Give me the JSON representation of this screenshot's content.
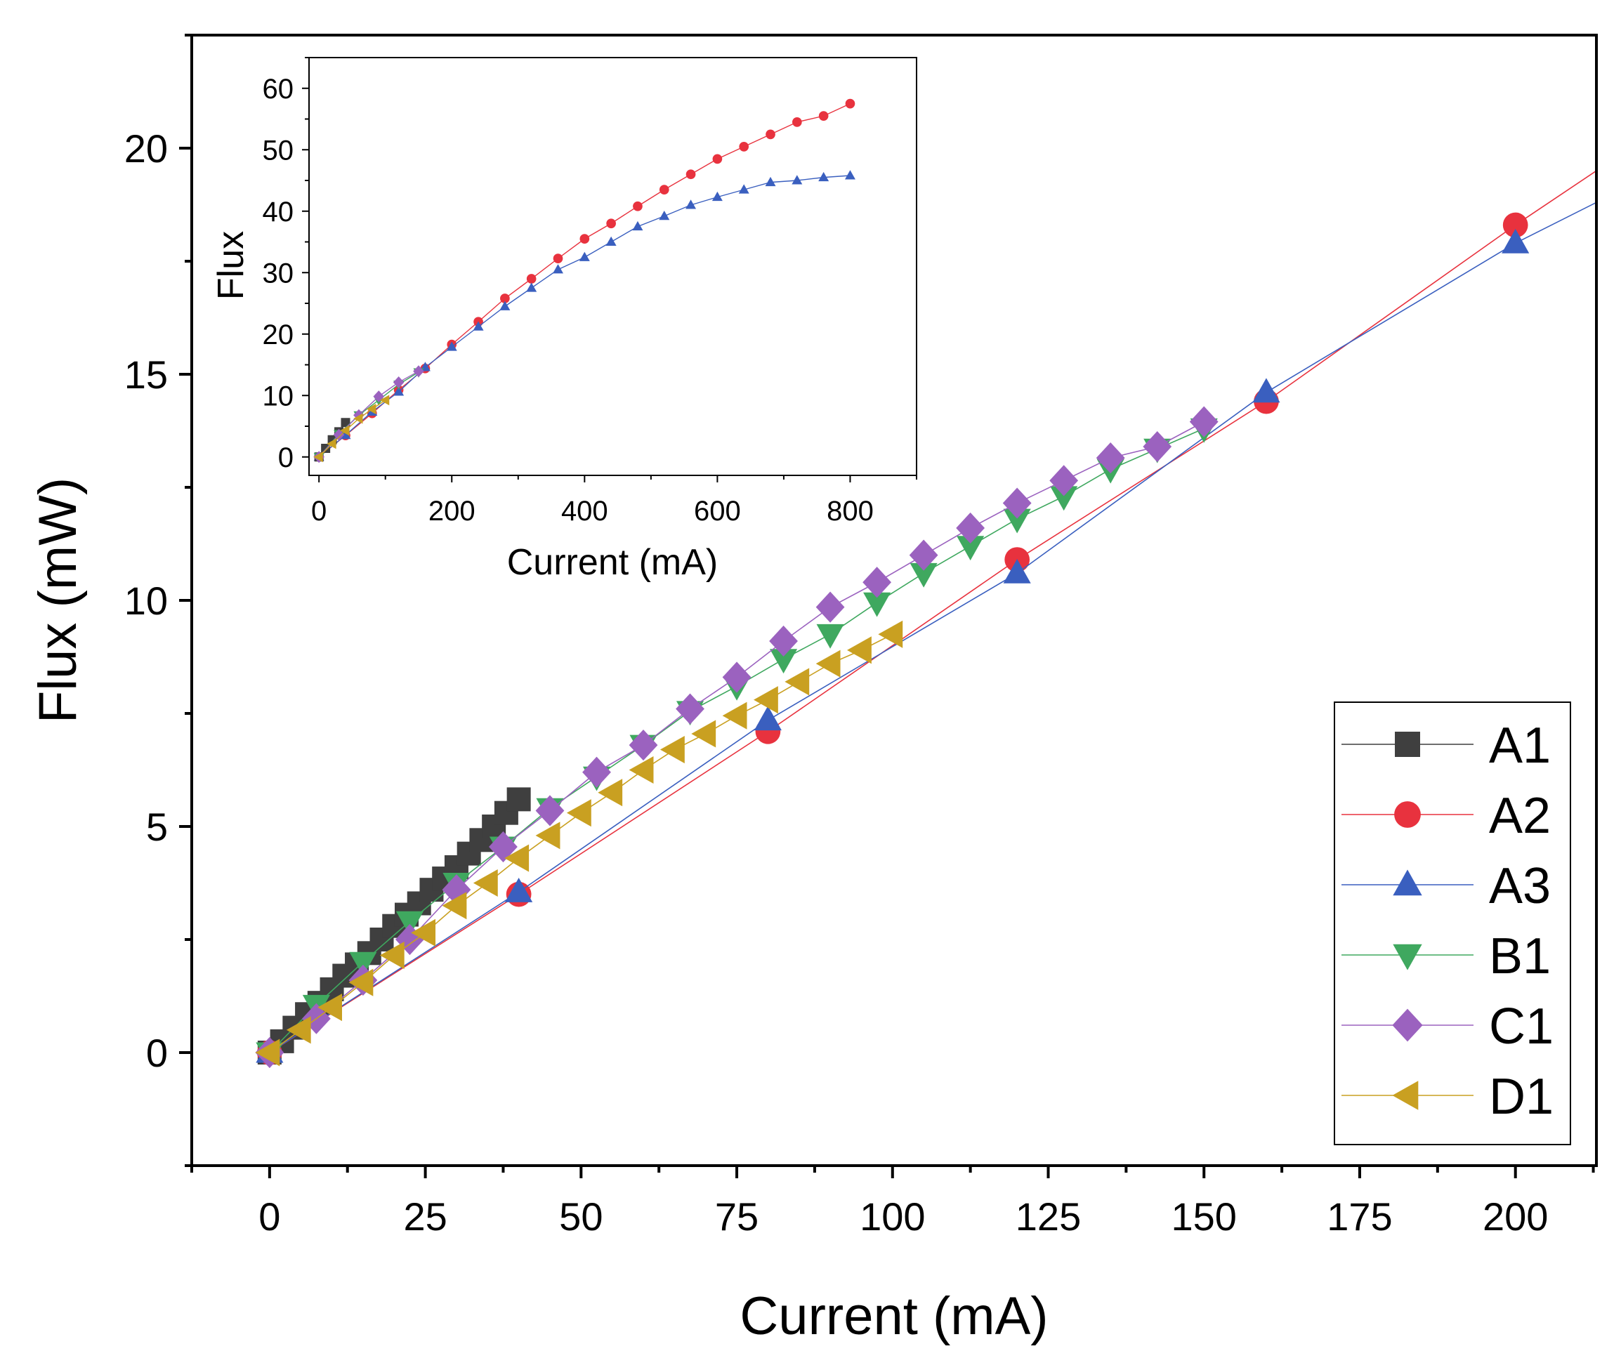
{
  "chart_data": [
    {
      "name": "main",
      "type": "line",
      "xlabel": "Current (mA)",
      "ylabel": "Flux (mW)",
      "xlim": [
        -12.5,
        213
      ],
      "ylim": [
        -2.5,
        22.5
      ],
      "xticks": [
        0,
        25,
        50,
        75,
        100,
        125,
        150,
        175,
        200
      ],
      "yticks": [
        0,
        5,
        10,
        15,
        20
      ],
      "legend_position": "bottom-right",
      "series": [
        {
          "name": "A1",
          "marker": "square",
          "color": "#3f3f3f",
          "x": [
            0,
            2,
            4,
            6,
            8,
            10,
            12,
            14,
            16,
            18,
            20,
            22,
            24,
            26,
            28,
            30,
            32,
            34,
            36,
            38,
            40
          ],
          "y": [
            0,
            0.25,
            0.55,
            0.85,
            1.1,
            1.4,
            1.7,
            1.95,
            2.2,
            2.5,
            2.8,
            3.05,
            3.3,
            3.6,
            3.85,
            4.1,
            4.4,
            4.7,
            5.0,
            5.3,
            5.6
          ]
        },
        {
          "name": "A2",
          "marker": "circle",
          "color": "#e8323e",
          "x": [
            0,
            40,
            80,
            120,
            160,
            200
          ],
          "y": [
            0,
            3.5,
            7.1,
            10.9,
            14.4,
            18.3
          ],
          "extends_to": [
            213,
            19.5
          ]
        },
        {
          "name": "A3",
          "marker": "triangle-up",
          "color": "#3a5fbf",
          "x": [
            0,
            40,
            80,
            120,
            160,
            200
          ],
          "y": [
            0,
            3.55,
            7.35,
            10.6,
            14.6,
            17.9
          ],
          "extends_to": [
            213,
            18.8
          ]
        },
        {
          "name": "B1",
          "marker": "triangle-down",
          "color": "#3fa85f",
          "x": [
            0,
            7.5,
            15,
            22.5,
            30,
            37.5,
            45,
            52.5,
            60,
            67.5,
            75,
            82.5,
            90,
            97.5,
            105,
            112.5,
            120,
            127.5,
            135,
            142.5,
            150
          ],
          "y": [
            0,
            1.05,
            2.0,
            2.9,
            3.75,
            4.55,
            5.4,
            6.1,
            6.8,
            7.55,
            8.1,
            8.7,
            9.25,
            9.95,
            10.6,
            11.2,
            11.8,
            12.3,
            12.9,
            13.35,
            13.8
          ]
        },
        {
          "name": "C1",
          "marker": "diamond",
          "color": "#9b62bf",
          "x": [
            0,
            7.5,
            15,
            22.5,
            30,
            37.5,
            45,
            52.5,
            60,
            67.5,
            75,
            82.5,
            90,
            97.5,
            105,
            112.5,
            120,
            127.5,
            135,
            142.5,
            150
          ],
          "y": [
            0,
            0.75,
            1.6,
            2.5,
            3.6,
            4.55,
            5.35,
            6.2,
            6.8,
            7.6,
            8.3,
            9.1,
            9.85,
            10.4,
            11.0,
            11.6,
            12.15,
            12.65,
            13.15,
            13.4,
            13.95
          ]
        },
        {
          "name": "D1",
          "marker": "triangle-left",
          "color": "#c9a021",
          "x": [
            0,
            5,
            10,
            15,
            20,
            25,
            30,
            35,
            40,
            45,
            50,
            55,
            60,
            65,
            70,
            75,
            80,
            85,
            90,
            95,
            100
          ],
          "y": [
            0,
            0.5,
            1.0,
            1.55,
            2.15,
            2.65,
            3.25,
            3.75,
            4.3,
            4.8,
            5.3,
            5.75,
            6.25,
            6.7,
            7.05,
            7.45,
            7.8,
            8.2,
            8.6,
            8.9,
            9.25
          ]
        }
      ]
    },
    {
      "name": "inset",
      "type": "line",
      "xlabel": "Current (mA)",
      "ylabel": "Flux",
      "xlim": [
        -15,
        900
      ],
      "ylim": [
        -3,
        65
      ],
      "xticks": [
        0,
        200,
        400,
        600,
        800
      ],
      "yticks": [
        0,
        10,
        20,
        30,
        40,
        50,
        60
      ],
      "series": [
        {
          "name": "A2",
          "marker": "circle",
          "color": "#e8323e",
          "x": [
            0,
            40,
            80,
            120,
            160,
            200,
            240,
            280,
            320,
            360,
            400,
            440,
            480,
            520,
            560,
            600,
            640,
            680,
            720,
            760,
            800
          ],
          "y": [
            0,
            3.5,
            7.1,
            10.9,
            14.4,
            18.3,
            22.0,
            25.8,
            29.0,
            32.3,
            35.5,
            38.0,
            40.8,
            43.5,
            46.0,
            48.5,
            50.5,
            52.5,
            54.5,
            55.5,
            57.5
          ]
        },
        {
          "name": "A3",
          "marker": "triangle-up",
          "color": "#3a5fbf",
          "x": [
            0,
            40,
            80,
            120,
            160,
            200,
            240,
            280,
            320,
            360,
            400,
            440,
            480,
            520,
            560,
            600,
            640,
            680,
            720,
            760,
            800
          ],
          "y": [
            0,
            3.55,
            7.35,
            10.6,
            14.6,
            17.9,
            21.2,
            24.5,
            27.5,
            30.5,
            32.5,
            35.0,
            37.5,
            39.2,
            41.0,
            42.3,
            43.5,
            44.7,
            45.0,
            45.5,
            45.8
          ]
        },
        {
          "name": "A1",
          "marker": "square",
          "color": "#3f3f3f",
          "x": [
            0,
            10,
            20,
            30,
            40
          ],
          "y": [
            0,
            1.4,
            2.8,
            4.1,
            5.6
          ]
        },
        {
          "name": "B1",
          "marker": "triangle-down",
          "color": "#3fa85f",
          "x": [
            0,
            30,
            60,
            90,
            120,
            150
          ],
          "y": [
            0,
            3.75,
            6.8,
            9.25,
            11.8,
            13.8
          ]
        },
        {
          "name": "C1",
          "marker": "diamond",
          "color": "#9b62bf",
          "x": [
            0,
            30,
            60,
            90,
            120,
            150
          ],
          "y": [
            0,
            3.6,
            6.8,
            9.85,
            12.15,
            13.95
          ]
        },
        {
          "name": "D1",
          "marker": "triangle-left",
          "color": "#c9a021",
          "x": [
            0,
            20,
            40,
            60,
            80,
            100
          ],
          "y": [
            0,
            2.15,
            4.3,
            6.25,
            7.8,
            9.25
          ]
        }
      ]
    }
  ]
}
